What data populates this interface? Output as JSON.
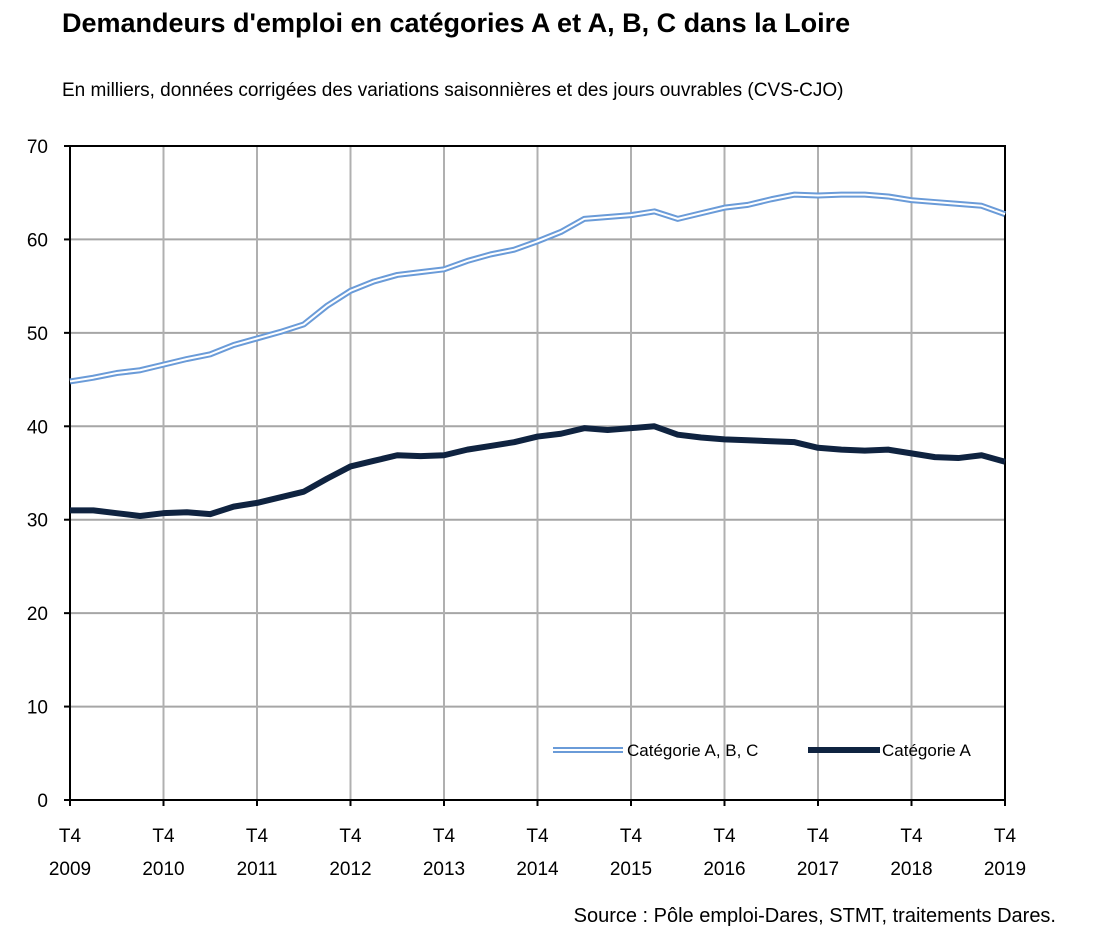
{
  "chart_data": {
    "type": "line",
    "title": "Demandeurs d'emploi en catégories A et A, B, C dans la Loire",
    "subtitle": "En milliers, données corrigées des variations saisonnières et des jours ouvrables (CVS-CJO)",
    "source": "Source : Pôle emploi-Dares, STMT, traitements Dares.",
    "ylim": [
      0,
      70
    ],
    "yticks": [
      0,
      10,
      20,
      30,
      40,
      50,
      60,
      70
    ],
    "xtick_labels": [
      [
        "T4",
        "2009"
      ],
      [
        "T4",
        "2010"
      ],
      [
        "T4",
        "2011"
      ],
      [
        "T4",
        "2012"
      ],
      [
        "T4",
        "2013"
      ],
      [
        "T4",
        "2014"
      ],
      [
        "T4",
        "2015"
      ],
      [
        "T4",
        "2016"
      ],
      [
        "T4",
        "2017"
      ],
      [
        "T4",
        "2018"
      ],
      [
        "T4",
        "2019"
      ]
    ],
    "x_frequency": "quarterly, T4 2009 to T4 2019",
    "grid": true,
    "legend_placement": "bottom-right",
    "series": [
      {
        "name": "Catégorie A, B, C",
        "color": "#6a9bd8",
        "style": "double",
        "values": [
          44.8,
          45.2,
          45.7,
          46.0,
          46.6,
          47.2,
          47.7,
          48.7,
          49.4,
          50.1,
          50.9,
          52.9,
          54.5,
          55.5,
          56.2,
          56.5,
          56.8,
          57.7,
          58.4,
          58.9,
          59.8,
          60.8,
          62.2,
          62.4,
          62.6,
          63.0,
          62.2,
          62.8,
          63.4,
          63.7,
          64.3,
          64.8,
          64.7,
          64.8,
          64.8,
          64.6,
          64.2,
          64.0,
          63.8,
          63.6,
          62.7
        ]
      },
      {
        "name": "Catégorie A",
        "color": "#0f2340",
        "style": "thick",
        "values": [
          31.0,
          31.0,
          30.7,
          30.4,
          30.7,
          30.8,
          30.6,
          31.4,
          31.8,
          32.4,
          33.0,
          34.4,
          35.7,
          36.3,
          36.9,
          36.8,
          36.9,
          37.5,
          37.9,
          38.3,
          38.9,
          39.2,
          39.8,
          39.6,
          39.8,
          40.0,
          39.1,
          38.8,
          38.6,
          38.5,
          38.4,
          38.3,
          37.7,
          37.5,
          37.4,
          37.5,
          37.1,
          36.7,
          36.6,
          36.9,
          36.2
        ]
      }
    ]
  }
}
